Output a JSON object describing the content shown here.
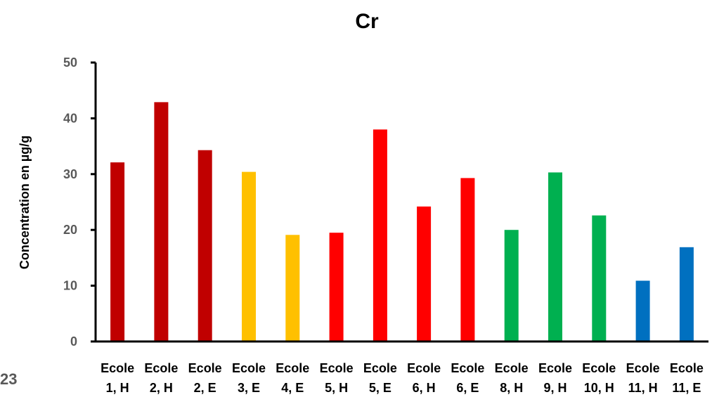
{
  "edge_fragment": "23",
  "chart_data": {
    "type": "bar",
    "title": "Cr",
    "xlabel": "",
    "ylabel": "Concentration en µg/g",
    "ylim": [
      0,
      50
    ],
    "yticks": [
      0,
      10,
      20,
      30,
      40,
      50
    ],
    "grid": false,
    "legend": "none",
    "categories": [
      [
        "Ecole",
        "1, H"
      ],
      [
        "Ecole",
        "2, H"
      ],
      [
        "Ecole",
        "2, E"
      ],
      [
        "Ecole",
        "3, E"
      ],
      [
        "Ecole",
        "4, E"
      ],
      [
        "Ecole",
        "5, H"
      ],
      [
        "Ecole",
        "5, E"
      ],
      [
        "Ecole",
        "6, H"
      ],
      [
        "Ecole",
        "6, E"
      ],
      [
        "Ecole",
        "8, H"
      ],
      [
        "Ecole",
        "9, H"
      ],
      [
        "Ecole",
        "10, H"
      ],
      [
        "Ecole",
        "11, H"
      ],
      [
        "Ecole",
        "11, E"
      ]
    ],
    "values": [
      32.1,
      42.9,
      34.3,
      30.4,
      19.1,
      19.5,
      38.0,
      24.2,
      29.3,
      20.0,
      30.3,
      22.6,
      10.9,
      16.9
    ],
    "colors": [
      "#C00000",
      "#C00000",
      "#C00000",
      "#FFC000",
      "#FFC000",
      "#FF0000",
      "#FF0000",
      "#FF0000",
      "#FF0000",
      "#00B050",
      "#00B050",
      "#00B050",
      "#0070C0",
      "#0070C0"
    ]
  }
}
